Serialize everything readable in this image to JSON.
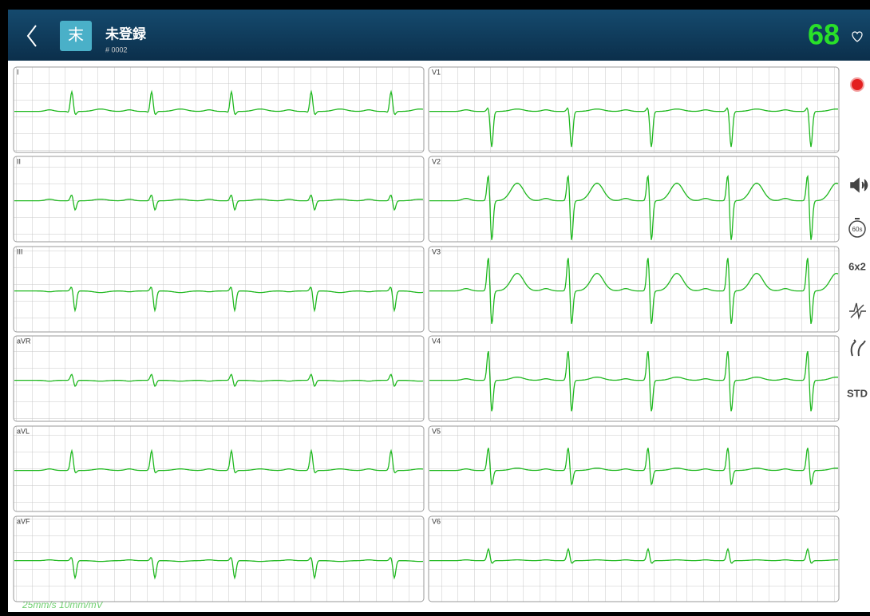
{
  "header": {
    "avatar": "末",
    "title": "未登録",
    "patient_id": "# 0002",
    "heart_rate": 68
  },
  "leads": {
    "left": [
      "I",
      "II",
      "III",
      "aVR",
      "aVL",
      "aVF"
    ],
    "right": [
      "V1",
      "V2",
      "V3",
      "V4",
      "V5",
      "V6"
    ]
  },
  "sidebar": {
    "timer": "60s",
    "layout": "6x2",
    "mode": "STD"
  },
  "footer": {
    "settings": "25mm/s 10mm/mV"
  }
}
